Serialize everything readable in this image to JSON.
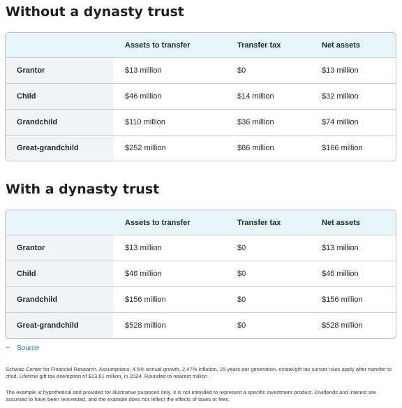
{
  "without": {
    "title": "Without a dynasty trust",
    "headers": [
      "",
      "Assets to transfer",
      "Transfer tax",
      "Net assets"
    ],
    "rows": [
      {
        "label": "Grantor",
        "assets": "$13 million",
        "tax": "$0",
        "net": "$13 million"
      },
      {
        "label": "Child",
        "assets": "$46 million",
        "tax": "$14 million",
        "net": "$32 million"
      },
      {
        "label": "Grandchild",
        "assets": "$110 million",
        "tax": "$36 million",
        "net": "$74 million"
      },
      {
        "label": "Great-grandchild",
        "assets": "$252 million",
        "tax": "$86 million",
        "net": "$166 million"
      }
    ]
  },
  "with": {
    "title": "With a dynasty trust",
    "headers": [
      "",
      "Assets to transfer",
      "Transfer tax",
      "Net assets"
    ],
    "rows": [
      {
        "label": "Grantor",
        "assets": "$13 million",
        "tax": "$0",
        "net": "$13 million"
      },
      {
        "label": "Child",
        "assets": "$46 million",
        "tax": "$0",
        "net": "$46 million"
      },
      {
        "label": "Grandchild",
        "assets": "$156 million",
        "tax": "$0",
        "net": "$156 million"
      },
      {
        "label": "Great-grandchild",
        "assets": "$528 million",
        "tax": "$0",
        "net": "$528 million"
      }
    ]
  },
  "source": {
    "toggle_symbol": "−",
    "label": "Source"
  },
  "notes": {
    "assumptions": "Schwab Center for Financial Research. Assumptions: 4.5% annual growth, 2.47% inflation, 25 years per generation, estate/gift tax sunset rules apply after transfer to child. Lifetime gift tax exemption of $13.61 million, in 2024. Rounded to nearest million.",
    "disclaimer": "The example is hypothetical and provided for illustrative purposes only. It is not intended to represent a specific investment product. Dividends and interest are assumed to have been reinvested, and the example does not reflect the effects of taxes or fees."
  },
  "colors": {
    "header_bg": "#e8f6fc",
    "label_bg": "#f3f4f5",
    "link": "#1a6fbf"
  }
}
